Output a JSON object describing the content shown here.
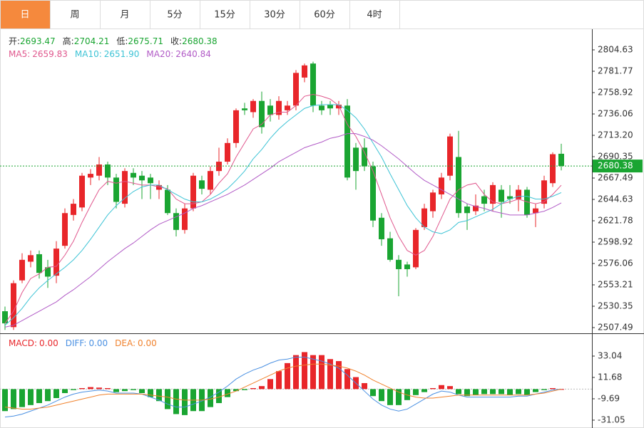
{
  "tabs": {
    "items": [
      "日",
      "周",
      "月",
      "5分",
      "15分",
      "30分",
      "60分",
      "4时"
    ],
    "active": 0
  },
  "chart_data": [
    {
      "type": "candlestick",
      "up_color": "#e8262a",
      "down_color": "#1aa532",
      "grid": false,
      "info_labels": [
        "开:",
        "高:",
        "低:",
        "收:"
      ],
      "open": [
        2525,
        2508,
        2558,
        2578,
        2586,
        2572,
        2563,
        2595,
        2628,
        2636,
        2668,
        2670,
        2682,
        2668,
        2640,
        2673,
        2670,
        2668,
        2655,
        2655,
        2630,
        2612,
        2635,
        2665,
        2655,
        2675,
        2685,
        2705,
        2742,
        2738,
        2750,
        2745,
        2735,
        2740,
        2745,
        2775,
        2790,
        2745,
        2746,
        2742,
        2745,
        2700,
        2700,
        2680,
        2625,
        2603,
        2580,
        2575,
        2572,
        2615,
        2632,
        2650,
        2670,
        2690,
        2637,
        2632,
        2648,
        2640,
        2655,
        2648,
        2645,
        2655,
        2630,
        2640,
        2662,
        2693.47
      ],
      "high": [
        2530,
        2558,
        2587,
        2590,
        2590,
        2580,
        2600,
        2635,
        2645,
        2673,
        2677,
        2690,
        2685,
        2672,
        2678,
        2678,
        2675,
        2672,
        2665,
        2660,
        2635,
        2640,
        2673,
        2670,
        2680,
        2700,
        2710,
        2742,
        2748,
        2752,
        2760,
        2752,
        2755,
        2750,
        2783,
        2790,
        2792,
        2750,
        2750,
        2750,
        2752,
        2705,
        2710,
        2685,
        2630,
        2610,
        2585,
        2578,
        2614,
        2640,
        2655,
        2673,
        2715,
        2718,
        2640,
        2650,
        2655,
        2663,
        2660,
        2660,
        2660,
        2658,
        2640,
        2670,
        2695,
        2704.21
      ],
      "low": [
        2505,
        2505,
        2555,
        2572,
        2560,
        2550,
        2555,
        2592,
        2622,
        2632,
        2660,
        2665,
        2660,
        2635,
        2636,
        2660,
        2645,
        2645,
        2645,
        2628,
        2605,
        2608,
        2632,
        2650,
        2650,
        2670,
        2682,
        2700,
        2735,
        2732,
        2715,
        2728,
        2730,
        2735,
        2740,
        2770,
        2738,
        2735,
        2735,
        2735,
        2665,
        2655,
        2675,
        2615,
        2595,
        2578,
        2541,
        2562,
        2570,
        2612,
        2625,
        2645,
        2665,
        2625,
        2612,
        2628,
        2632,
        2632,
        2625,
        2640,
        2632,
        2625,
        2615,
        2635,
        2658,
        2675.71
      ],
      "close": [
        2512,
        2555,
        2580,
        2585,
        2566,
        2562,
        2592,
        2630,
        2640,
        2670,
        2672,
        2682,
        2668,
        2642,
        2675,
        2668,
        2665,
        2662,
        2660,
        2630,
        2612,
        2635,
        2670,
        2656,
        2675,
        2685,
        2705,
        2740,
        2740,
        2750,
        2722,
        2735,
        2750,
        2745,
        2780,
        2788,
        2745,
        2740,
        2742,
        2746,
        2668,
        2675,
        2680,
        2622,
        2602,
        2580,
        2570,
        2570,
        2612,
        2635,
        2652,
        2668,
        2712,
        2630,
        2630,
        2638,
        2640,
        2660,
        2642,
        2645,
        2655,
        2628,
        2635,
        2665,
        2693,
        2680.38
      ],
      "series": [
        {
          "name": "MA5:",
          "value_label": "2659.83",
          "color": "#e0578d",
          "values": [
            2512,
            2525,
            2545,
            2560,
            2565,
            2572,
            2573,
            2585,
            2600,
            2620,
            2638,
            2655,
            2664,
            2662,
            2664,
            2662,
            2660,
            2660,
            2658,
            2656,
            2645,
            2640,
            2640,
            2642,
            2650,
            2662,
            2672,
            2690,
            2705,
            2720,
            2725,
            2735,
            2738,
            2738,
            2745,
            2755,
            2757,
            2755,
            2752,
            2745,
            2725,
            2712,
            2695,
            2675,
            2650,
            2625,
            2605,
            2590,
            2585,
            2590,
            2605,
            2625,
            2645,
            2655,
            2660,
            2662,
            2650,
            2642,
            2640,
            2642,
            2645,
            2642,
            2640,
            2642,
            2650,
            2659.83
          ]
        },
        {
          "name": "MA10:",
          "value_label": "2651.90",
          "color": "#3cc3d5",
          "values": [
            2510,
            2518,
            2528,
            2540,
            2550,
            2558,
            2565,
            2572,
            2580,
            2590,
            2602,
            2615,
            2628,
            2638,
            2646,
            2653,
            2658,
            2660,
            2660,
            2655,
            2650,
            2645,
            2642,
            2642,
            2645,
            2650,
            2656,
            2665,
            2675,
            2688,
            2698,
            2710,
            2720,
            2728,
            2735,
            2742,
            2745,
            2746,
            2746,
            2746,
            2740,
            2732,
            2720,
            2705,
            2690,
            2672,
            2655,
            2638,
            2625,
            2615,
            2610,
            2608,
            2612,
            2620,
            2622,
            2626,
            2630,
            2634,
            2640,
            2645,
            2648,
            2648,
            2645,
            2645,
            2648,
            2651.9
          ]
        },
        {
          "name": "MA20:",
          "value_label": "2640.84",
          "color": "#b15ac6",
          "values": [
            2508,
            2510,
            2515,
            2520,
            2525,
            2530,
            2535,
            2542,
            2548,
            2555,
            2562,
            2570,
            2578,
            2585,
            2592,
            2598,
            2605,
            2612,
            2618,
            2622,
            2626,
            2630,
            2635,
            2638,
            2642,
            2646,
            2650,
            2655,
            2660,
            2666,
            2672,
            2678,
            2685,
            2690,
            2695,
            2700,
            2703,
            2706,
            2710,
            2712,
            2715,
            2715,
            2712,
            2708,
            2702,
            2695,
            2688,
            2680,
            2672,
            2665,
            2660,
            2655,
            2650,
            2645,
            2640,
            2637,
            2635,
            2632,
            2630,
            2628,
            2628,
            2628,
            2630,
            2632,
            2636,
            2640.84
          ]
        }
      ],
      "ylim": [
        2501.4,
        2823.7
      ],
      "yticks": [
        2804.63,
        2781.77,
        2758.92,
        2736.06,
        {
          "value": 2713.2,
          "label": "2713.20"
        },
        2690.35,
        2667.49,
        2644.63,
        2621.78,
        2598.92,
        2576.06,
        2553.21,
        2530.35,
        2507.49
      ]
    },
    {
      "type": "macd",
      "up_color": "#e8262a",
      "down_color": "#1aa532",
      "grid": false,
      "histogram": {
        "name": "MACD:",
        "value_label": "0.00",
        "color": "#e8262a",
        "values": [
          -22,
          -20,
          -18,
          -16,
          -14,
          -12,
          -9,
          -4,
          -1,
          1,
          2,
          1.5,
          1,
          -3,
          -2,
          -1,
          -4,
          -8,
          -12,
          -20,
          -25,
          -26,
          -22,
          -22,
          -18,
          -14,
          -8,
          -2,
          -1,
          1,
          3,
          10,
          18,
          26,
          34,
          37,
          34,
          34,
          30,
          28,
          20,
          12,
          6,
          -7,
          -12,
          -16,
          -16,
          -11,
          -6,
          -3,
          1,
          4,
          3,
          -5,
          -7,
          -6,
          -5,
          -5,
          -5,
          -6,
          -5,
          -6,
          -3,
          -1,
          1,
          0
        ]
      },
      "series": [
        {
          "name": "DIFF:",
          "value_label": "0.00",
          "color": "#4a90e2",
          "values": [
            -28,
            -27,
            -25,
            -22,
            -19,
            -16,
            -12,
            -8,
            -5,
            -3,
            -2,
            -1,
            -2,
            -4,
            -4,
            -4,
            -5,
            -8,
            -11,
            -15,
            -18,
            -18,
            -15,
            -12,
            -8,
            -3,
            3,
            10,
            15,
            19,
            22,
            26,
            29,
            30,
            32,
            32,
            30,
            28,
            25,
            21,
            14,
            6,
            -2,
            -10,
            -16,
            -20,
            -22,
            -20,
            -15,
            -10,
            -5,
            -2,
            -3,
            -6,
            -8,
            -8,
            -8,
            -8,
            -8,
            -8,
            -7,
            -7,
            -5,
            -3,
            -1,
            0
          ]
        },
        {
          "name": "DEA:",
          "value_label": "0.00",
          "color": "#f0822d",
          "values": [
            -18,
            -19,
            -20,
            -20,
            -19,
            -18,
            -16,
            -14,
            -12,
            -10,
            -8,
            -6,
            -5,
            -5,
            -5,
            -5,
            -5,
            -6,
            -7,
            -8,
            -10,
            -11,
            -11,
            -11,
            -10,
            -8,
            -5,
            -2,
            2,
            6,
            10,
            14,
            18,
            21,
            23,
            24,
            25,
            25,
            24,
            23,
            21,
            18,
            14,
            9,
            5,
            1,
            -3,
            -6,
            -8,
            -9,
            -9,
            -8,
            -7,
            -6,
            -6,
            -6,
            -6,
            -6,
            -6,
            -6,
            -6,
            -6,
            -5,
            -4,
            -2,
            0
          ]
        }
      ],
      "ylim": [
        -38.2,
        54.4
      ],
      "yticks": [
        33.04,
        11.68,
        -9.69,
        -31.05
      ]
    }
  ]
}
